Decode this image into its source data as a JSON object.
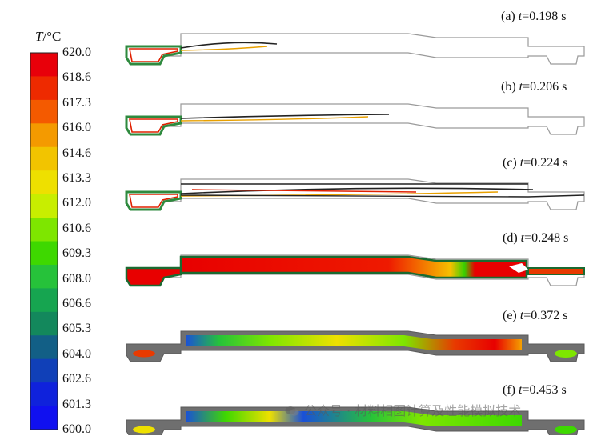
{
  "colorbar": {
    "title_symbol": "T",
    "title_unit": "/°C",
    "ticks": [
      "620.0",
      "618.6",
      "617.3",
      "616.0",
      "614.6",
      "613.3",
      "612.0",
      "610.6",
      "609.3",
      "608.0",
      "606.6",
      "605.3",
      "604.0",
      "602.6",
      "601.3",
      "600.0"
    ],
    "colors": [
      "#e8000a",
      "#ee2a00",
      "#f45a00",
      "#f49a00",
      "#f2c400",
      "#eee000",
      "#c8ee00",
      "#7ee600",
      "#3ed800",
      "#26c23a",
      "#16a550",
      "#13885c",
      "#125f86",
      "#1040b8",
      "#0f22dc",
      "#1010f0"
    ]
  },
  "panels": [
    {
      "id": "a",
      "prefix": "(a) ",
      "var": "t",
      "value": "=0.198 s"
    },
    {
      "id": "b",
      "prefix": "(b) ",
      "var": "t",
      "value": "=0.206 s"
    },
    {
      "id": "c",
      "prefix": "(c) ",
      "var": "t",
      "value": "=0.224 s"
    },
    {
      "id": "d",
      "prefix": "(d) ",
      "var": "t",
      "value": "=0.248 s"
    },
    {
      "id": "e",
      "prefix": "(e) ",
      "var": "t",
      "value": "=0.372 s"
    },
    {
      "id": "f",
      "prefix": "(f) ",
      "var": "t",
      "value": "=0.453 s"
    }
  ],
  "watermark": "公众号 · 材料相图计算及性能模拟技术"
}
